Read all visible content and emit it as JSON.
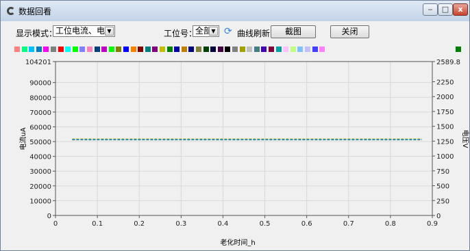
{
  "window": {
    "title": "数据回看",
    "minimize": "‒",
    "maximize": "□",
    "close": "x"
  },
  "toolbar": {
    "display_mode_label": "显示模式：",
    "display_mode_value": "工位电流、电压",
    "station_label": "工位号：",
    "station_value": "全部",
    "refresh_label": "曲线刷新",
    "screenshot_label": "截图",
    "close_label": "关闭"
  },
  "swatch_colors": [
    "#ff8080",
    "#00ff80",
    "#00c0ff",
    "#0080c0",
    "#ff00ff",
    "#808080",
    "#ff0000",
    "#00ffff",
    "#00ff00",
    "#8080ff",
    "#ff80c0",
    "#004080",
    "#c000c0",
    "#00ff00",
    "#808000",
    "#0000ff",
    "#ff8000",
    "#800000",
    "#008080",
    "#800080",
    "#c0c000",
    "#008000",
    "#0000a0",
    "#c08000",
    "#000080",
    "#808040",
    "#004000",
    "#000040",
    "#400040",
    "#000000",
    "#808080",
    "#a0a000",
    "#c0c0c0",
    "#408080",
    "#4000c0",
    "#800040",
    "#00a0a0",
    "#ffc0ff",
    "#c0ff80",
    "#80c0ff",
    "#c0c0ff",
    "#4040ff",
    "#ff80ff"
  ],
  "legend_end_color": "#008000",
  "chart_data": {
    "type": "line",
    "title": "",
    "xlabel": "老化时间_h",
    "ylabel": "电流uA",
    "y2label": "电压V",
    "xlim": [
      0,
      0.9
    ],
    "ylim": [
      0,
      104201
    ],
    "y2lim": [
      0,
      2589.8
    ],
    "x_ticks": [
      "0",
      "0.1",
      "0.2",
      "0.3",
      "0.4",
      "0.5",
      "0.6",
      "0.7",
      "0.8",
      "0.9"
    ],
    "y_ticks": [
      "0",
      "10000",
      "20000",
      "30000",
      "40000",
      "50000",
      "60000",
      "70000",
      "80000",
      "90000",
      "104201"
    ],
    "y2_ticks": [
      "0",
      "250",
      "500",
      "750",
      "1000",
      "1250",
      "1500",
      "1750",
      "2000",
      "2250",
      "2589.8"
    ],
    "grid": true,
    "series": [
      {
        "color": "#ff0000",
        "x": [
          0.04,
          0.875
        ],
        "y": [
          51800,
          51800
        ]
      },
      {
        "color": "#00c000",
        "x": [
          0.04,
          0.875
        ],
        "y": [
          51500,
          51500
        ]
      },
      {
        "color": "#0000ff",
        "x": [
          0.04,
          0.875
        ],
        "y": [
          51300,
          51300
        ]
      },
      {
        "color": "#c0c000",
        "x": [
          0.04,
          0.875
        ],
        "y": [
          51900,
          51900
        ]
      },
      {
        "color": "#ff80ff",
        "x": [
          0.04,
          0.875
        ],
        "y": [
          51600,
          51600
        ]
      },
      {
        "color": "#000000",
        "x": [
          0.04,
          0.875
        ],
        "y": [
          51200,
          51200
        ]
      },
      {
        "color": "#00c0c0",
        "x": [
          0.04,
          0.875
        ],
        "y": [
          51400,
          51400
        ]
      }
    ]
  }
}
